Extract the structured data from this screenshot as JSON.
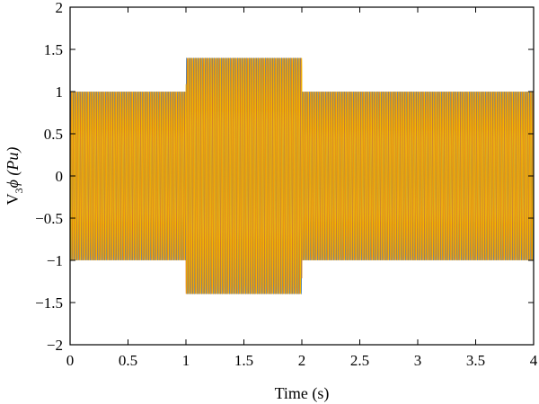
{
  "chart_data": {
    "type": "line",
    "xlabel": "Time (s)",
    "ylabel_main": "V",
    "ylabel_sub": "3",
    "ylabel_rest": "ϕ (Pu)",
    "xlim": [
      0,
      4
    ],
    "ylim": [
      -2,
      2
    ],
    "x_ticks": [
      0,
      0.5,
      1,
      1.5,
      2,
      2.5,
      3,
      3.5,
      4
    ],
    "x_tick_labels": [
      "0",
      "0.5",
      "1",
      "1.5",
      "2",
      "2.5",
      "3",
      "3.5",
      "4"
    ],
    "y_ticks": [
      -2,
      -1.5,
      -1,
      -0.5,
      0,
      0.5,
      1,
      1.5,
      2
    ],
    "y_tick_labels": [
      "−2",
      "−1.5",
      "−1",
      "−0.5",
      "0",
      "0.5",
      "1",
      "1.5",
      "2"
    ],
    "grid": false,
    "frequency_hz": 50,
    "phases_deg": [
      0,
      -120,
      120
    ],
    "segments": [
      {
        "t_start": 0,
        "t_end": 1,
        "amplitude_pu": 1.0
      },
      {
        "t_start": 1,
        "t_end": 2,
        "amplitude_pu": 1.4
      },
      {
        "t_start": 2,
        "t_end": 4,
        "amplitude_pu": 1.0
      }
    ],
    "series_colors": [
      "#4a7fb0",
      "#e07b1a",
      "#f2b400"
    ]
  }
}
